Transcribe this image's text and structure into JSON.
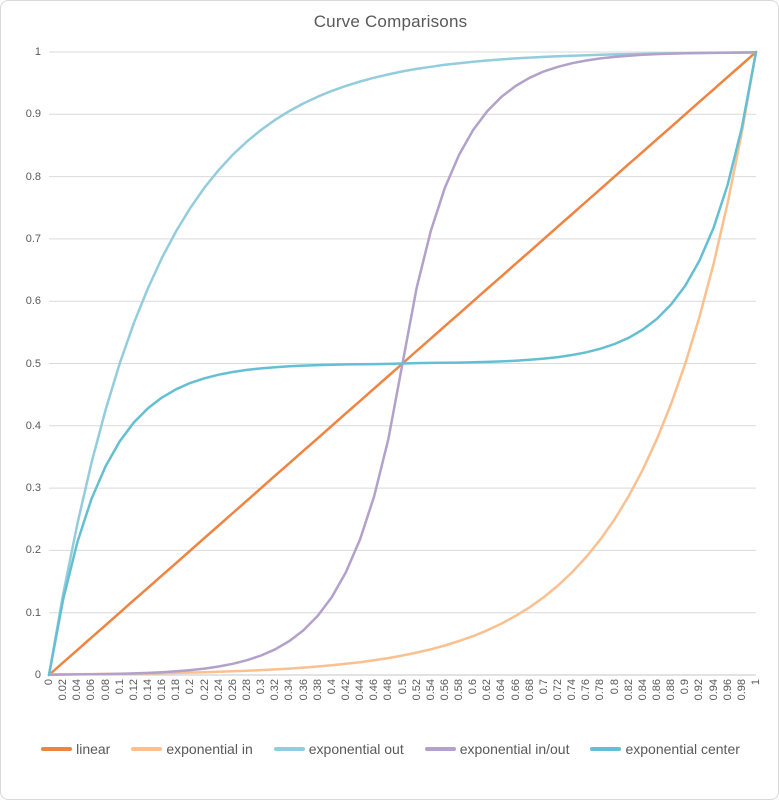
{
  "title": "Curve Comparisons",
  "chart_data": {
    "type": "line",
    "title": "Curve Comparisons",
    "xlabel": "",
    "ylabel": "",
    "xlim": [
      0,
      1
    ],
    "ylim": [
      0,
      1
    ],
    "grid": "horizontal-only",
    "legend_position": "bottom",
    "x_tick_labels": [
      "0",
      "0.02",
      "0.04",
      "0.06",
      "0.08",
      "0.1",
      "0.12",
      "0.14",
      "0.16",
      "0.18",
      "0.2",
      "0.22",
      "0.24",
      "0.26",
      "0.28",
      "0.3",
      "0.32",
      "0.34",
      "0.36",
      "0.38",
      "0.4",
      "0.42",
      "0.44",
      "0.46",
      "0.48",
      "0.5",
      "0.52",
      "0.54",
      "0.56",
      "0.58",
      "0.6",
      "0.62",
      "0.64",
      "0.66",
      "0.68",
      "0.7",
      "0.72",
      "0.74",
      "0.76",
      "0.78",
      "0.8",
      "0.82",
      "0.84",
      "0.86",
      "0.88",
      "0.9",
      "0.92",
      "0.94",
      "0.96",
      "0.98",
      "1"
    ],
    "y_tick_labels": [
      "0",
      "0.1",
      "0.2",
      "0.3",
      "0.4",
      "0.5",
      "0.6",
      "0.7",
      "0.8",
      "0.9",
      "1"
    ],
    "x": [
      0,
      0.02,
      0.04,
      0.06,
      0.08,
      0.1,
      0.12,
      0.14,
      0.16,
      0.18,
      0.2,
      0.22,
      0.24,
      0.26,
      0.28,
      0.3,
      0.32,
      0.34,
      0.36,
      0.38,
      0.4,
      0.42,
      0.44,
      0.46,
      0.48,
      0.5,
      0.52,
      0.54,
      0.56,
      0.58,
      0.6,
      0.62,
      0.64,
      0.66,
      0.68,
      0.7,
      0.72,
      0.74,
      0.76,
      0.78,
      0.8,
      0.82,
      0.84,
      0.86,
      0.88,
      0.9,
      0.92,
      0.94,
      0.96,
      0.98,
      1
    ],
    "series": [
      {
        "name": "linear",
        "color": "#EF8440",
        "values": [
          0,
          0.02,
          0.04,
          0.06,
          0.08,
          0.1,
          0.12,
          0.14,
          0.16,
          0.18,
          0.2,
          0.22,
          0.24,
          0.26,
          0.28,
          0.3,
          0.32,
          0.34,
          0.36,
          0.38,
          0.4,
          0.42,
          0.44,
          0.46,
          0.48,
          0.5,
          0.52,
          0.54,
          0.56,
          0.58,
          0.6,
          0.62,
          0.64,
          0.66,
          0.68,
          0.7,
          0.72,
          0.74,
          0.76,
          0.78,
          0.8,
          0.82,
          0.84,
          0.86,
          0.88,
          0.9,
          0.92,
          0.94,
          0.96,
          0.98,
          1
        ]
      },
      {
        "name": "exponential in",
        "color": "#FAC08F",
        "values": [
          0.001,
          0.0011,
          0.0013,
          0.0015,
          0.0017,
          0.002,
          0.0022,
          0.0026,
          0.003,
          0.0034,
          0.0039,
          0.0045,
          0.0052,
          0.0059,
          0.0068,
          0.0078,
          0.009,
          0.0103,
          0.0118,
          0.0136,
          0.0156,
          0.018,
          0.0206,
          0.0237,
          0.0272,
          0.0313,
          0.0359,
          0.0413,
          0.0474,
          0.0545,
          0.0625,
          0.0718,
          0.0825,
          0.0948,
          0.1089,
          0.125,
          0.1436,
          0.165,
          0.1896,
          0.2178,
          0.25,
          0.2872,
          0.33,
          0.3792,
          0.4356,
          0.5,
          0.5745,
          0.6601,
          0.7583,
          0.8713,
          1
        ]
      },
      {
        "name": "exponential out",
        "color": "#93CDDD",
        "values": [
          0,
          0.1294,
          0.2421,
          0.3402,
          0.4257,
          0.5,
          0.5647,
          0.6211,
          0.6701,
          0.7129,
          0.75,
          0.7824,
          0.8105,
          0.8351,
          0.8564,
          0.875,
          0.8912,
          0.9053,
          0.9175,
          0.9282,
          0.9375,
          0.9456,
          0.9526,
          0.9588,
          0.9641,
          0.9688,
          0.9728,
          0.9763,
          0.9794,
          0.9821,
          0.9844,
          0.9864,
          0.9882,
          0.9897,
          0.991,
          0.9922,
          0.9932,
          0.9941,
          0.9948,
          0.9955,
          0.9961,
          0.9966,
          0.997,
          0.9974,
          0.9978,
          0.998,
          0.9983,
          0.9985,
          0.9987,
          0.9989,
          0.999
        ]
      },
      {
        "name": "exponential in/out",
        "color": "#B1A1CB",
        "values": [
          0.0005,
          0.0006,
          0.0009,
          0.0011,
          0.0015,
          0.002,
          0.0026,
          0.0034,
          0.0045,
          0.0059,
          0.0078,
          0.0103,
          0.0136,
          0.018,
          0.0237,
          0.0313,
          0.0413,
          0.0545,
          0.0718,
          0.0948,
          0.125,
          0.165,
          0.2178,
          0.2872,
          0.3789,
          0.5,
          0.6211,
          0.7128,
          0.7822,
          0.835,
          0.875,
          0.9052,
          0.9282,
          0.9455,
          0.9587,
          0.9688,
          0.9763,
          0.982,
          0.9864,
          0.9897,
          0.9922,
          0.9941,
          0.9955,
          0.9966,
          0.9974,
          0.998,
          0.9985,
          0.9989,
          0.9991,
          0.9994,
          0.9995
        ]
      },
      {
        "name": "exponential center",
        "color": "#65BFD3",
        "values": [
          0,
          0.1211,
          0.2129,
          0.2824,
          0.335,
          0.375,
          0.4053,
          0.4282,
          0.4456,
          0.4588,
          0.4688,
          0.4763,
          0.4821,
          0.4864,
          0.4897,
          0.4922,
          0.4941,
          0.4955,
          0.4966,
          0.4974,
          0.498,
          0.4985,
          0.4989,
          0.4991,
          0.4994,
          0.5,
          0.5006,
          0.5009,
          0.5011,
          0.5015,
          0.502,
          0.5026,
          0.5034,
          0.5045,
          0.5059,
          0.5078,
          0.5103,
          0.5136,
          0.518,
          0.5237,
          0.5313,
          0.5413,
          0.5545,
          0.5718,
          0.5948,
          0.625,
          0.665,
          0.7178,
          0.7872,
          0.8789,
          1
        ]
      }
    ],
    "colors": {
      "gridline": "#D9D9D9",
      "axis_line": "#C6C6C6",
      "tick_text": "#595959",
      "title_text": "#595959"
    }
  }
}
